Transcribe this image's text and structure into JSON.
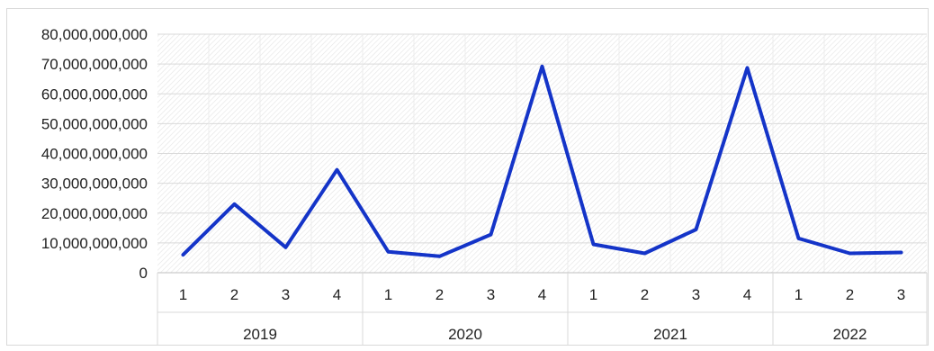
{
  "chart_data": {
    "type": "line",
    "title": "",
    "xlabel": "",
    "ylabel": "",
    "ylim": [
      0,
      80000000000
    ],
    "y_ticks": [
      0,
      10000000000,
      20000000000,
      30000000000,
      40000000000,
      50000000000,
      60000000000,
      70000000000,
      80000000000
    ],
    "y_tick_labels": [
      "0",
      "10,000,000,000",
      "20,000,000,000",
      "30,000,000,000",
      "40,000,000,000",
      "50,000,000,000",
      "60,000,000,000",
      "70,000,000,000",
      "80,000,000,000"
    ],
    "categories": [
      "1",
      "2",
      "3",
      "4",
      "1",
      "2",
      "3",
      "4",
      "1",
      "2",
      "3",
      "4",
      "1",
      "2",
      "3"
    ],
    "groups": [
      {
        "label": "2019",
        "count": 4
      },
      {
        "label": "2020",
        "count": 4
      },
      {
        "label": "2021",
        "count": 4
      },
      {
        "label": "2022",
        "count": 3
      }
    ],
    "series": [
      {
        "values": [
          6000000000,
          23000000000,
          8500000000,
          34500000000,
          7000000000,
          5500000000,
          12800000000,
          69200000000,
          9500000000,
          6500000000,
          14500000000,
          68700000000,
          11500000000,
          6500000000,
          6800000000
        ],
        "color": "#1434c8"
      }
    ],
    "grid": true,
    "legend": "none"
  }
}
